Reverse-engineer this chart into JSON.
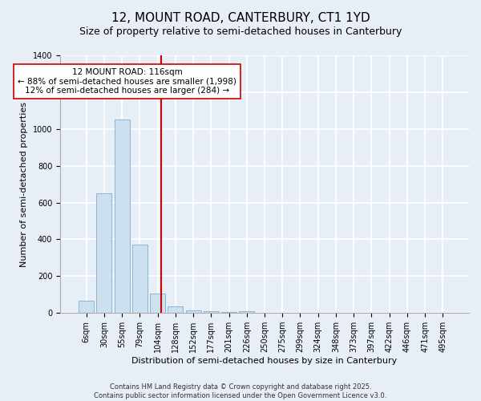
{
  "title": "12, MOUNT ROAD, CANTERBURY, CT1 1YD",
  "subtitle": "Size of property relative to semi-detached houses in Canterbury",
  "xlabel": "Distribution of semi-detached houses by size in Canterbury",
  "ylabel": "Number of semi-detached properties",
  "bar_labels": [
    "6sqm",
    "30sqm",
    "55sqm",
    "79sqm",
    "104sqm",
    "128sqm",
    "152sqm",
    "177sqm",
    "201sqm",
    "226sqm",
    "250sqm",
    "275sqm",
    "299sqm",
    "324sqm",
    "348sqm",
    "373sqm",
    "397sqm",
    "422sqm",
    "446sqm",
    "471sqm",
    "495sqm"
  ],
  "bar_heights": [
    65,
    650,
    1050,
    370,
    105,
    37,
    15,
    10,
    5,
    10,
    0,
    0,
    0,
    0,
    0,
    0,
    0,
    0,
    0,
    0,
    0
  ],
  "bar_color": "#cce0f0",
  "bar_edgecolor": "#7aaed0",
  "vline_color": "#cc0000",
  "ylim": [
    0,
    1400
  ],
  "yticks": [
    0,
    200,
    400,
    600,
    800,
    1000,
    1200,
    1400
  ],
  "annotation_text": "12 MOUNT ROAD: 116sqm\n← 88% of semi-detached houses are smaller (1,998)\n12% of semi-detached houses are larger (284) →",
  "annotation_box_color": "#ffffff",
  "annotation_box_edgecolor": "#cc0000",
  "footer_line1": "Contains HM Land Registry data © Crown copyright and database right 2025.",
  "footer_line2": "Contains public sector information licensed under the Open Government Licence v3.0.",
  "background_color": "#e8eef5",
  "plot_background_color": "#e8eef5",
  "grid_color": "#ffffff",
  "title_fontsize": 11,
  "subtitle_fontsize": 9,
  "axis_label_fontsize": 8,
  "tick_fontsize": 7,
  "annotation_fontsize": 7.5,
  "footer_fontsize": 6.0
}
